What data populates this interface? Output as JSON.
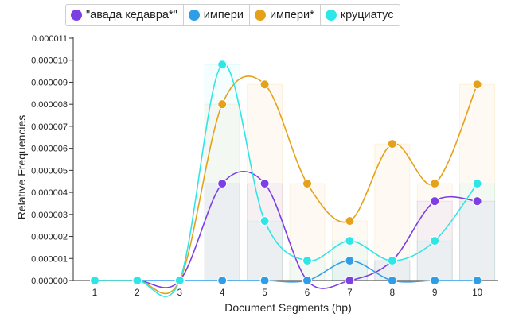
{
  "chart_data": {
    "type": "line",
    "xlabel": "Document Segments (hp)",
    "ylabel": "Relative Frequencies",
    "categories": [
      "1",
      "2",
      "3",
      "4",
      "5",
      "6",
      "7",
      "8",
      "9",
      "10"
    ],
    "ylim": [
      0,
      1.1e-05
    ],
    "yticks": [
      "0.000000",
      "0.000001",
      "0.000002",
      "0.000003",
      "0.000004",
      "0.000005",
      "0.000006",
      "0.000007",
      "0.000008",
      "0.000009",
      "0.000010",
      "0.000011"
    ],
    "legend_position": "top",
    "series": [
      {
        "name": "\"авада кедавра*\"",
        "color": "#7b3fe4",
        "values": [
          0,
          0,
          0,
          4.4e-06,
          4.4e-06,
          0,
          0,
          9e-07,
          3.6e-06,
          3.6e-06
        ]
      },
      {
        "name": "импери",
        "color": "#2f9ee8",
        "values": [
          0,
          0,
          0,
          0,
          0,
          0,
          9e-07,
          0,
          0,
          0
        ]
      },
      {
        "name": "импери*",
        "color": "#e6a11a",
        "values": [
          0,
          0,
          0,
          8e-06,
          8.9e-06,
          4.4e-06,
          2.7e-06,
          6.2e-06,
          4.4e-06,
          8.9e-06
        ]
      },
      {
        "name": "круциатус",
        "color": "#2fe6e6",
        "values": [
          0,
          0,
          0,
          9.8e-06,
          2.7e-06,
          9e-07,
          1.8e-06,
          9e-07,
          1.8e-06,
          4.4e-06
        ]
      }
    ]
  }
}
